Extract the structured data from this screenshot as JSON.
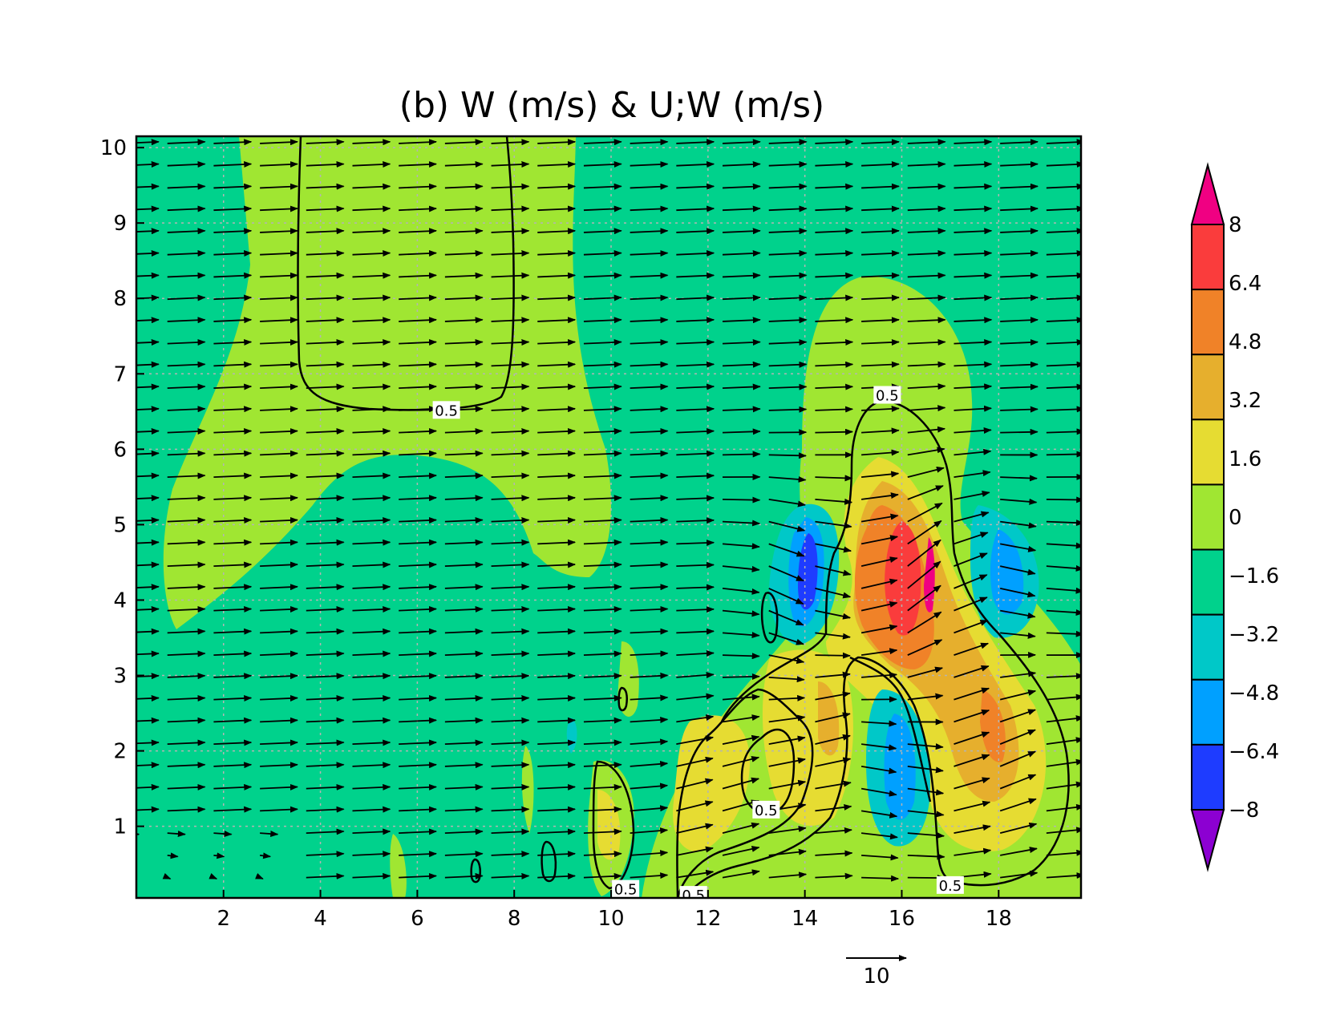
{
  "chart_data": {
    "type": "contour",
    "title": "(b) W (m/s) & U;W (m/s)",
    "xlabel": "",
    "ylabel": "",
    "xlim": [
      0.2,
      19.7
    ],
    "ylim": [
      0.05,
      10.15
    ],
    "xticks": [
      2,
      4,
      6,
      8,
      10,
      12,
      14,
      16,
      18
    ],
    "yticks": [
      1,
      2,
      3,
      4,
      5,
      6,
      7,
      8,
      9,
      10
    ],
    "xtick_labels": [
      "2",
      "4",
      "6",
      "8",
      "10",
      "12",
      "14",
      "16",
      "18"
    ],
    "ytick_labels": [
      "1",
      "2",
      "3",
      "4",
      "5",
      "6",
      "7",
      "8",
      "9",
      "10"
    ],
    "grid": true,
    "filled_field": "W (m/s)",
    "vector_field": "U;W (m/s)",
    "colorbar": {
      "levels": [
        -8,
        -6.4,
        -4.8,
        -3.2,
        -1.6,
        0,
        1.6,
        3.2,
        4.8,
        6.4,
        8
      ],
      "labels": [
        "−8",
        "−6.4",
        "−4.8",
        "−3.2",
        "−1.6",
        "0",
        "1.6",
        "3.2",
        "4.8",
        "6.4",
        "8"
      ],
      "colors": [
        "#8c00d2",
        "#1e3cff",
        "#00a0ff",
        "#00c8c8",
        "#00d28c",
        "#a0e632",
        "#e6dc32",
        "#e6af2d",
        "#f08228",
        "#fa3c3c",
        "#f00082"
      ],
      "extend": "both"
    },
    "contour_label": "0.5",
    "vector_reference": {
      "value": 10,
      "label": "10"
    },
    "features": [
      {
        "kind": "updraft_core",
        "x": 16.8,
        "y": 4.2,
        "w_max": 7.5
      },
      {
        "kind": "updraft_band",
        "x": 18.1,
        "y": 1.9,
        "w_max": 4.0
      },
      {
        "kind": "updraft_band",
        "x": 14.6,
        "y": 2.3,
        "w_max": 3.0
      },
      {
        "kind": "updraft_band",
        "x": 12.3,
        "y": 1.3,
        "w_max": 2.5
      },
      {
        "kind": "downdraft",
        "x": 13.9,
        "y": 4.1,
        "w_min": -5.0
      },
      {
        "kind": "downdraft",
        "x": 15.9,
        "y": 1.8,
        "w_min": -3.5
      },
      {
        "kind": "downdraft",
        "x": 18.3,
        "y": 4.2,
        "w_min": -3.5
      }
    ]
  }
}
